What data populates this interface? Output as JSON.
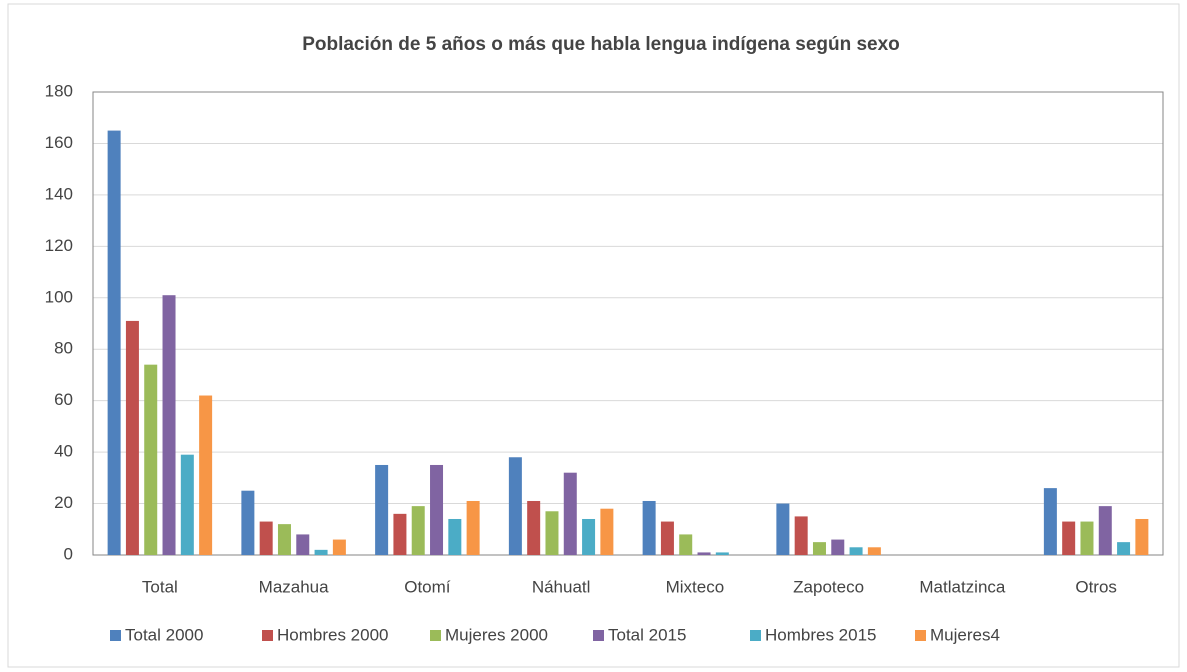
{
  "chart_data": {
    "type": "bar",
    "title": "Población de 5 años o más que habla lengua indígena según sexo",
    "categories": [
      "Total",
      "Mazahua",
      "Otomí",
      "Náhuatl",
      "Mixteco",
      "Zapoteco",
      "Matlatzinca",
      "Otros"
    ],
    "series": [
      {
        "name": "Total 2000",
        "color": "#4f81bd",
        "values": [
          165,
          25,
          35,
          38,
          21,
          20,
          0,
          26
        ]
      },
      {
        "name": "Hombres 2000",
        "color": "#c0504d",
        "values": [
          91,
          13,
          16,
          21,
          13,
          15,
          0,
          13
        ]
      },
      {
        "name": "Mujeres 2000",
        "color": "#9bbb59",
        "values": [
          74,
          12,
          19,
          17,
          8,
          5,
          0,
          13
        ]
      },
      {
        "name": "Total 2015",
        "color": "#8064a2",
        "values": [
          101,
          8,
          35,
          32,
          1,
          6,
          0,
          19
        ]
      },
      {
        "name": "Hombres 2015",
        "color": "#4bacc6",
        "values": [
          39,
          2,
          14,
          14,
          1,
          3,
          0,
          5
        ]
      },
      {
        "name": "Mujeres4",
        "color": "#f79646",
        "values": [
          62,
          6,
          21,
          18,
          0,
          3,
          0,
          14
        ]
      }
    ],
    "ylim": [
      0,
      180
    ],
    "yticks": [
      0,
      20,
      40,
      60,
      80,
      100,
      120,
      140,
      160,
      180
    ],
    "grid": true,
    "legend": "bottom"
  }
}
